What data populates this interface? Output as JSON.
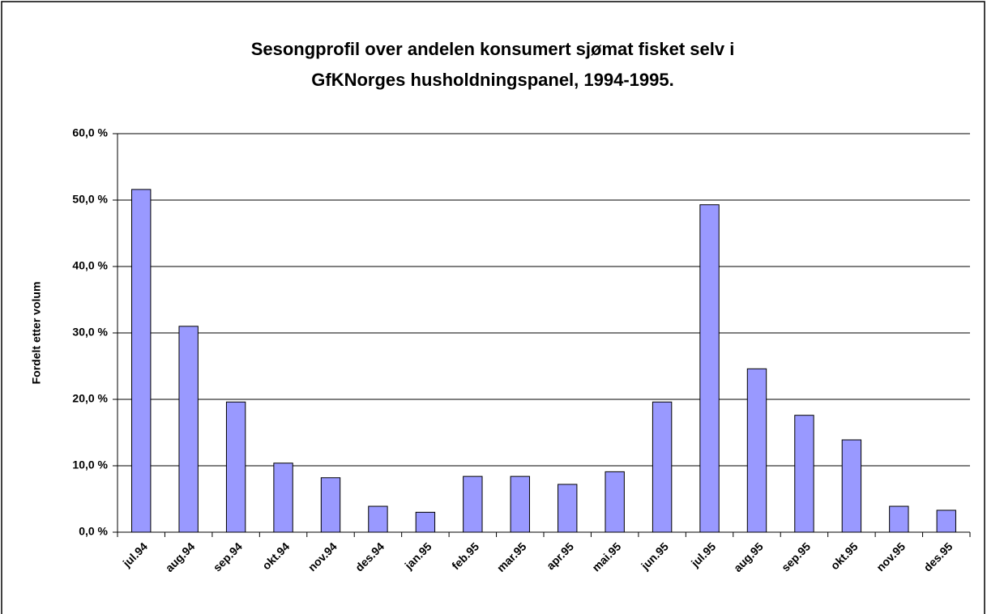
{
  "chart_data": {
    "type": "bar",
    "title": [
      "Sesongprofil over andelen konsumert sjømat fisket selv i",
      "GfKNorges husholdningspanel, 1994-1995."
    ],
    "ylabel": "Fordelt etter volum",
    "categories": [
      "jul.94",
      "aug.94",
      "sep.94",
      "okt.94",
      "nov.94",
      "des.94",
      "jan.95",
      "feb.95",
      "mar.95",
      "apr.95",
      "mai.95",
      "jun.95",
      "jul.95",
      "aug.95",
      "sep.95",
      "okt.95",
      "nov.95",
      "des.95"
    ],
    "values": [
      51.6,
      31.0,
      19.6,
      10.4,
      8.2,
      3.9,
      3.0,
      8.4,
      8.4,
      7.2,
      9.1,
      19.6,
      49.3,
      24.6,
      17.6,
      13.9,
      3.9,
      3.3
    ],
    "color": "#9999ff",
    "ylim": [
      0,
      60
    ],
    "yticks": [
      {
        "value": 0,
        "label": "0,0 %"
      },
      {
        "value": 10,
        "label": "10,0 %"
      },
      {
        "value": 20,
        "label": "20,0 %"
      },
      {
        "value": 30,
        "label": "30,0 %"
      },
      {
        "value": 40,
        "label": "40,0 %"
      },
      {
        "value": 50,
        "label": "50,0 %"
      },
      {
        "value": 60,
        "label": "60,0 %"
      }
    ],
    "grid": true
  }
}
